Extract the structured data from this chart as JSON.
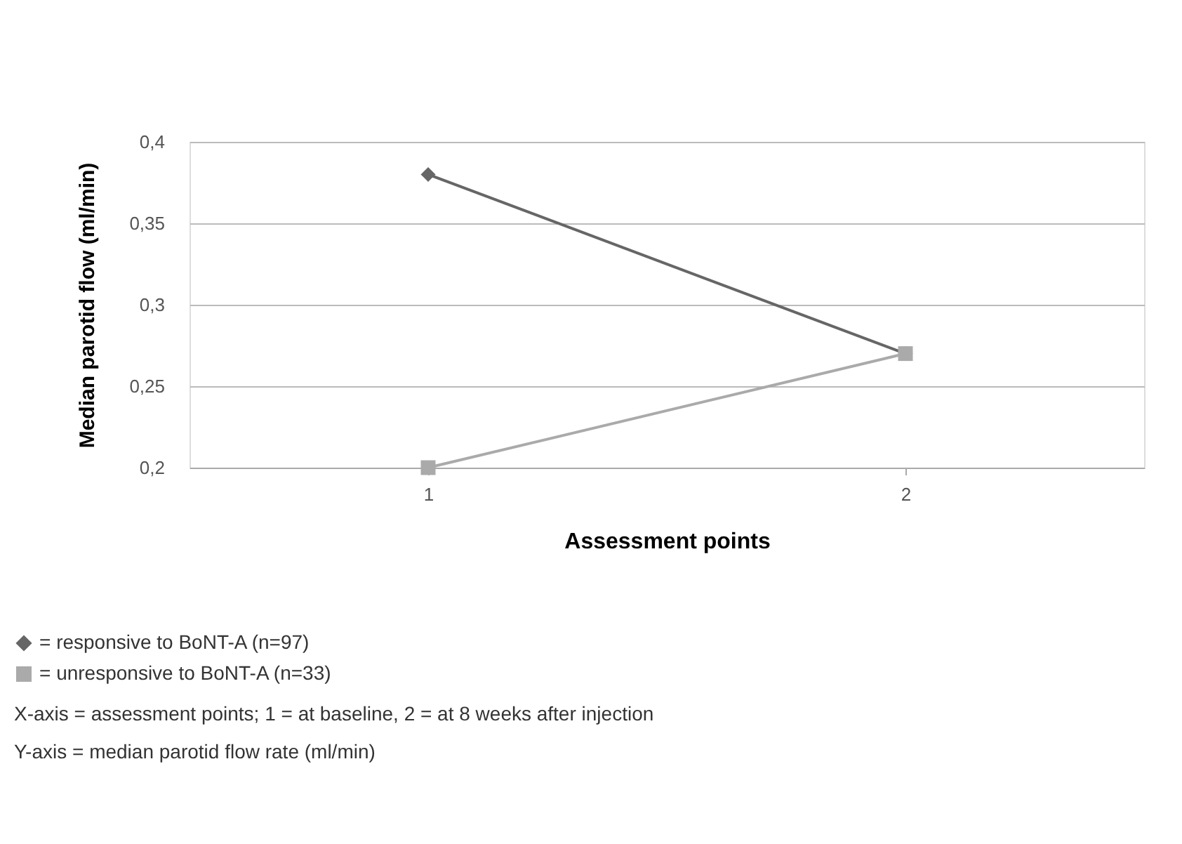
{
  "chart_data": {
    "type": "line",
    "xlabel": "Assessment points",
    "ylabel": "Median parotid flow (ml/min)",
    "categories": [
      "1",
      "2"
    ],
    "series": [
      {
        "name": "= responsive to BoNT-A (n=97)",
        "color": "#666666",
        "marker": "diamond",
        "values": [
          0.38,
          0.27
        ]
      },
      {
        "name": "= unresponsive to BoNT-A (n=33)",
        "color": "#aaaaaa",
        "marker": "square",
        "values": [
          0.2,
          0.27
        ]
      }
    ],
    "ylim": [
      0.2,
      0.4
    ],
    "yticks": [
      {
        "value": 0.2,
        "label": "0,2"
      },
      {
        "value": 0.25,
        "label": "0,25"
      },
      {
        "value": 0.3,
        "label": "0,3"
      },
      {
        "value": 0.35,
        "label": "0,35"
      },
      {
        "value": 0.4,
        "label": "0,4"
      }
    ],
    "grid": "y",
    "legend": "bottom left",
    "line_style": "solid",
    "annotations": [
      "X-axis = assessment points; 1 = at baseline, 2 = at 8 weeks after injection",
      "Y-axis = median parotid flow rate (ml/min)"
    ]
  }
}
